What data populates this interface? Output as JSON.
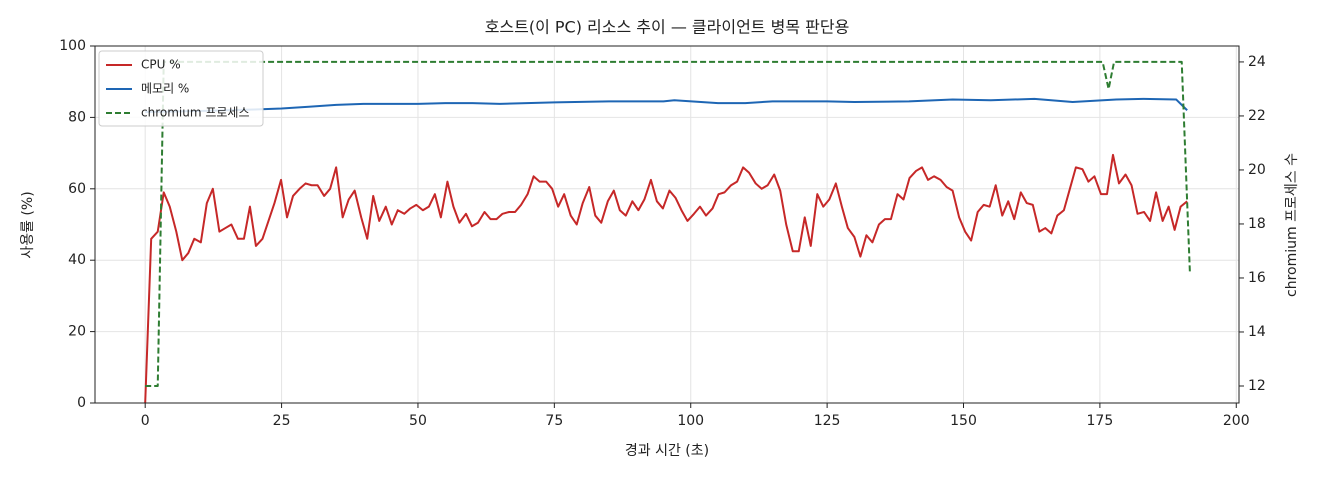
{
  "chart_data": {
    "type": "line",
    "title": "호스트(이 PC) 리소스 추이 — 클라이언트 병목 판단용",
    "xlabel": "경과 시간 (초)",
    "ylabel": "사용률 (%)",
    "y2label": "chromium 프로세스 수",
    "x": [
      0,
      1.1,
      2.3,
      3.4,
      4.5,
      5.7,
      6.8,
      7.9,
      9,
      10.2,
      11.3,
      12.4,
      13.6,
      14.7,
      15.8,
      17,
      18.1,
      19.2,
      20.3,
      21.5,
      22.6,
      23.7,
      24.9,
      26,
      27.1,
      28.3,
      29.4,
      30.5,
      31.6,
      32.8,
      33.9,
      35,
      36.2,
      37.3,
      38.4,
      39.6,
      40.7,
      41.8,
      42.9,
      44.1,
      45.2,
      46.3,
      47.5,
      48.6,
      49.7,
      50.9,
      52,
      53.1,
      54.2,
      55.4,
      56.5,
      57.6,
      58.8,
      59.9,
      61,
      62.2,
      63.3,
      64.4,
      65.5,
      66.7,
      67.8,
      68.9,
      70.1,
      71.2,
      72.3,
      73.5,
      74.6,
      75.7,
      76.8,
      78,
      79.1,
      80.2,
      81.4,
      82.5,
      83.6,
      84.8,
      85.9,
      87,
      88.1,
      89.3,
      90.4,
      91.5,
      92.7,
      93.8,
      94.9,
      96.1,
      97.2,
      98.3,
      99.4,
      100.6,
      101.7,
      102.8,
      104,
      105.1,
      106.2,
      107.4,
      108.5,
      109.6,
      110.7,
      111.9,
      113,
      114.1,
      115.3,
      116.4,
      117.5,
      118.7,
      119.8,
      120.9,
      122,
      123.2,
      124.3,
      125.4,
      126.6,
      127.7,
      128.8,
      130,
      131.1,
      132.2,
      133.3,
      134.5,
      135.6,
      136.7,
      137.9,
      139,
      140.1,
      141.3,
      142.4,
      143.5,
      144.6,
      145.8,
      146.9,
      148,
      149.2,
      150.3,
      151.4,
      152.6,
      153.7,
      154.8,
      155.9,
      157.1,
      158.2,
      159.3,
      160.5,
      161.6,
      162.7,
      163.9,
      165,
      166.1,
      167.2,
      168.4,
      169.5,
      170.6,
      171.8,
      172.9,
      174,
      175.2,
      176.3,
      177.4,
      178.5,
      179.7,
      180.8,
      181.9,
      183.1,
      184.2,
      185.3,
      186.5,
      187.6,
      188.7,
      189.8,
      191
    ],
    "series": [
      {
        "name": "CPU %",
        "color": "#c62828",
        "dash": false,
        "values": [
          0,
          46,
          48,
          59,
          55,
          48,
          40,
          42,
          46,
          45,
          56,
          60,
          48,
          49,
          50,
          46,
          46,
          55,
          44,
          46,
          51,
          56,
          62.5,
          52,
          58,
          60,
          61.5,
          61,
          61,
          58,
          60,
          66,
          52,
          57,
          59.5,
          52,
          46,
          58,
          51,
          55,
          50,
          54,
          53,
          54.5,
          55.5,
          54,
          55,
          58.5,
          52,
          62,
          55,
          50.5,
          53,
          49.5,
          50.5,
          53.5,
          51.5,
          51.5,
          53,
          53.5,
          53.5,
          55.5,
          58.5,
          63.5,
          62,
          62,
          60,
          55,
          58.5,
          52.5,
          50,
          56,
          60.5,
          52.5,
          50.5,
          56.5,
          59.5,
          54,
          52.5,
          56.5,
          54,
          57,
          62.5,
          56.5,
          54.5,
          59.5,
          57.5,
          54,
          51,
          53,
          55,
          52.5,
          54.5,
          58.5,
          59,
          61,
          62,
          66,
          64.5,
          61.5,
          60,
          61,
          64,
          59.5,
          50,
          42.5,
          42.5,
          52,
          44,
          58.5,
          55,
          57,
          61.5,
          55,
          49,
          46.5,
          41,
          47,
          45,
          50,
          51.5,
          51.5,
          58.5,
          57,
          63,
          65,
          66,
          62.5,
          63.5,
          62.5,
          60.5,
          59.5,
          52,
          48,
          45.5,
          53.5,
          55.5,
          55,
          61,
          52.5,
          56.5,
          51.5,
          59,
          56,
          55.5,
          48,
          49,
          47.5,
          52.5,
          54,
          60,
          66,
          65.5,
          62,
          63.5,
          58.5,
          58.5,
          69.5,
          61.5,
          64,
          61,
          53,
          53.5,
          51,
          59,
          51,
          55,
          48.5,
          55,
          56.5
        ]
      },
      {
        "name": "메모리 %",
        "color": "#1e66b4",
        "dash": false,
        "x": [
          0,
          10,
          20,
          25,
          30,
          35,
          40,
          50,
          55,
          60,
          65,
          75,
          85,
          95,
          97,
          105,
          110,
          115,
          125,
          130,
          140,
          148,
          155,
          163,
          170,
          178,
          183,
          189,
          191
        ],
        "values": [
          81.5,
          81.8,
          82.2,
          82.5,
          83,
          83.5,
          83.8,
          83.8,
          84,
          84,
          83.8,
          84.2,
          84.5,
          84.5,
          84.8,
          84,
          84,
          84.5,
          84.5,
          84.3,
          84.5,
          85,
          84.8,
          85.2,
          84.3,
          85,
          85.2,
          85,
          82
        ]
      },
      {
        "name": "chromium 프로세스",
        "color": "#2e7d32",
        "dash": true,
        "axis": "y2",
        "x": [
          0,
          2.3,
          3.4,
          175.5,
          176.6,
          177.6,
          190,
          191,
          191.5
        ],
        "values": [
          12,
          12,
          24,
          24,
          23,
          24,
          24,
          18.8,
          16.2
        ]
      }
    ],
    "xlim": [
      -9.2,
      200.5
    ],
    "xticks": [
      0,
      25,
      50,
      75,
      100,
      125,
      150,
      175,
      200
    ],
    "ylim": [
      0,
      100
    ],
    "yticks": [
      0,
      20,
      40,
      60,
      80,
      100
    ],
    "y2lim": [
      11.37,
      24.59
    ],
    "y2ticks": [
      12,
      14,
      16,
      18,
      20,
      22,
      24
    ],
    "grid": true,
    "legend": "upper left"
  }
}
